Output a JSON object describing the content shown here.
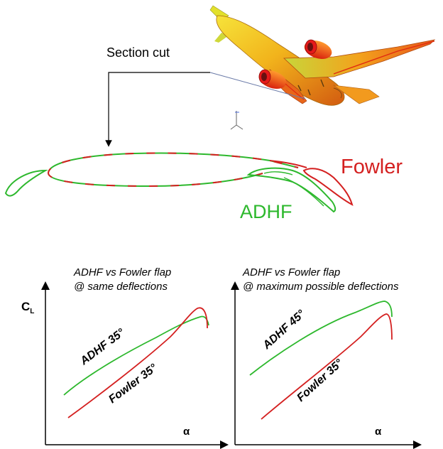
{
  "labels": {
    "section_cut": "Section cut",
    "fowler": "Fowler",
    "adhf": "ADHF"
  },
  "charts": [
    {
      "title_line1": "ADHF vs Fowler flap",
      "title_line2": "@ same deflections",
      "ylabel_main": "C",
      "ylabel_sub": "L",
      "xlabel": "α",
      "curve_green_label": "ADHF 35°",
      "curve_red_label": "Fowler 35°"
    },
    {
      "title_line1": "ADHF vs Fowler flap",
      "title_line2": "@ maximum possible deflections",
      "xlabel": "α",
      "curve_green_label": "ADHF 45°",
      "curve_red_label": "Fowler 35°"
    }
  ],
  "colors": {
    "fowler": "#d42020",
    "adhf": "#2db82d",
    "axis": "#000000",
    "aircraft_body": "#f3d21f"
  },
  "icons": {
    "aircraft": "aircraft-3d-render-icon",
    "coordinate_axes": "xyz-axes-icon"
  }
}
